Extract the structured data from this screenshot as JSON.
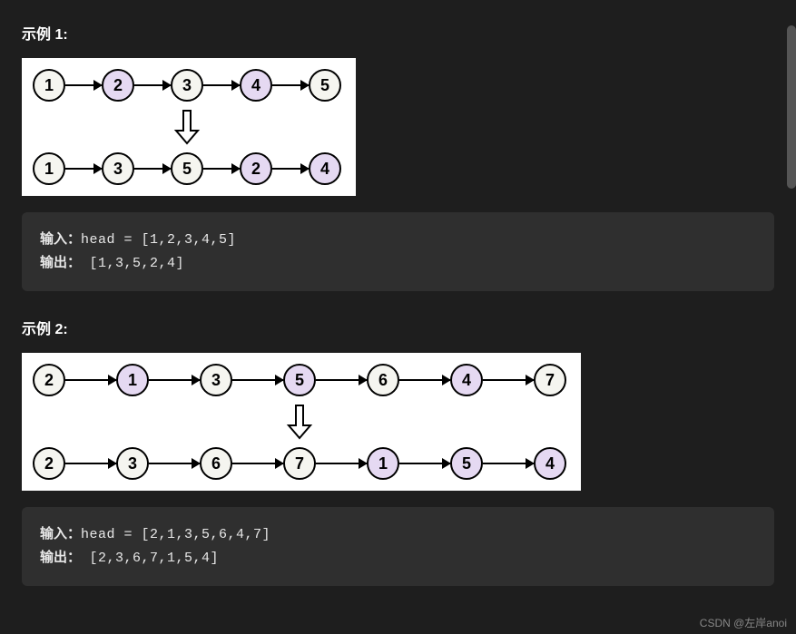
{
  "colors": {
    "page_bg": "#1e1e1e",
    "diagram_bg": "#ffffff",
    "code_bg": "#2f2f2f",
    "text": "#e8e8e8",
    "node_border": "#000000",
    "node_fill_odd": "#f5f5f0",
    "node_fill_even": "#e5d9f2",
    "arrow_color": "#000000"
  },
  "layout": {
    "node_diameter": 36,
    "node_border_width": 2,
    "arrow_head_size": 10,
    "down_arrow_height": 40
  },
  "example1": {
    "title": "示例 1:",
    "diagram": {
      "type": "linked-list-transform",
      "arrow_gap": 40,
      "top_row": [
        {
          "label": "1",
          "fill": "#f5f5f0"
        },
        {
          "label": "2",
          "fill": "#e5d9f2"
        },
        {
          "label": "3",
          "fill": "#f5f5f0"
        },
        {
          "label": "4",
          "fill": "#e5d9f2"
        },
        {
          "label": "5",
          "fill": "#f5f5f0"
        }
      ],
      "bottom_row": [
        {
          "label": "1",
          "fill": "#f5f5f0"
        },
        {
          "label": "3",
          "fill": "#f5f5f0"
        },
        {
          "label": "5",
          "fill": "#f5f5f0"
        },
        {
          "label": "2",
          "fill": "#e5d9f2"
        },
        {
          "label": "4",
          "fill": "#e5d9f2"
        }
      ]
    },
    "code": {
      "input_label": "输入：",
      "input_text": "head = [1,2,3,4,5]",
      "output_label": "输出：",
      "output_text": " [1,3,5,2,4]"
    }
  },
  "example2": {
    "title": "示例 2:",
    "diagram": {
      "type": "linked-list-transform",
      "arrow_gap": 56,
      "top_row": [
        {
          "label": "2",
          "fill": "#f5f5f0"
        },
        {
          "label": "1",
          "fill": "#e5d9f2"
        },
        {
          "label": "3",
          "fill": "#f5f5f0"
        },
        {
          "label": "5",
          "fill": "#e5d9f2"
        },
        {
          "label": "6",
          "fill": "#f5f5f0"
        },
        {
          "label": "4",
          "fill": "#e5d9f2"
        },
        {
          "label": "7",
          "fill": "#f5f5f0"
        }
      ],
      "bottom_row": [
        {
          "label": "2",
          "fill": "#f5f5f0"
        },
        {
          "label": "3",
          "fill": "#f5f5f0"
        },
        {
          "label": "6",
          "fill": "#f5f5f0"
        },
        {
          "label": "7",
          "fill": "#f5f5f0"
        },
        {
          "label": "1",
          "fill": "#e5d9f2"
        },
        {
          "label": "5",
          "fill": "#e5d9f2"
        },
        {
          "label": "4",
          "fill": "#e5d9f2"
        }
      ]
    },
    "code": {
      "input_label": "输入：",
      "input_text": "head = [2,1,3,5,6,4,7]",
      "output_label": "输出：",
      "output_text": " [2,3,6,7,1,5,4]"
    }
  },
  "watermark": "CSDN @左岸anoi"
}
